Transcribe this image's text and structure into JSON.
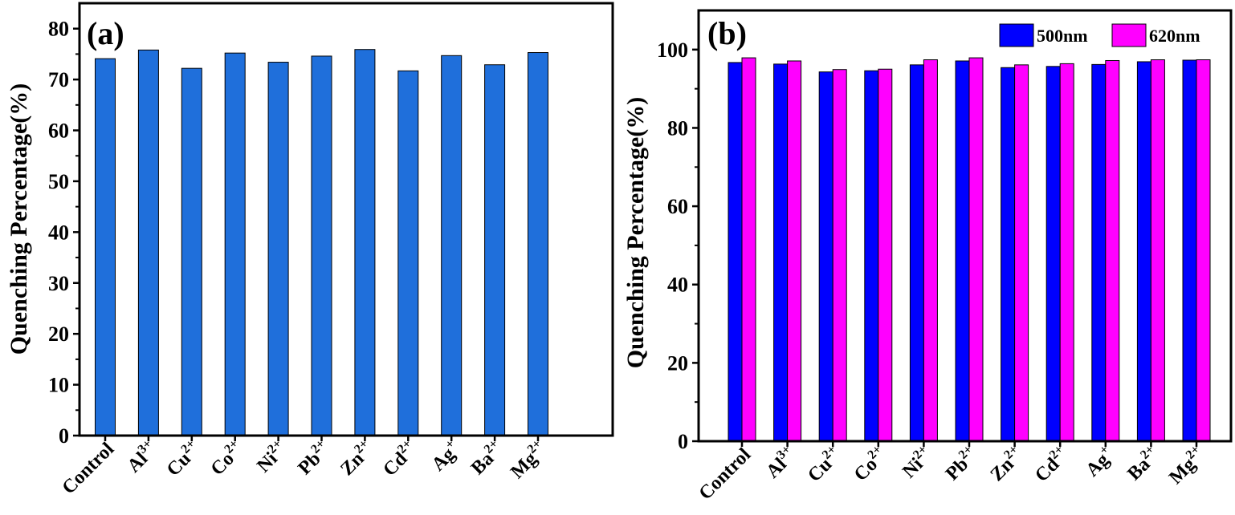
{
  "chart_data": [
    {
      "type": "bar",
      "panel_label": "(a)",
      "ylabel": "Quenching Percentage(%)",
      "ylim": [
        0,
        85
      ],
      "yticks": [
        "0",
        "10",
        "20",
        "30",
        "40",
        "50",
        "60",
        "70",
        "80"
      ],
      "categories": [
        {
          "base": "Control",
          "sup": ""
        },
        {
          "base": "Al",
          "sup": "3+"
        },
        {
          "base": "Cu",
          "sup": "2+"
        },
        {
          "base": "Co",
          "sup": "2+"
        },
        {
          "base": "Ni",
          "sup": "2+"
        },
        {
          "base": "Pb",
          "sup": "2+"
        },
        {
          "base": "Zn",
          "sup": "2+"
        },
        {
          "base": "Cd",
          "sup": "2+"
        },
        {
          "base": "Ag",
          "sup": "+"
        },
        {
          "base": "Ba",
          "sup": "2+"
        },
        {
          "base": "Mg",
          "sup": "2+"
        }
      ],
      "series": [
        {
          "values": [
            74.1,
            75.8,
            72.2,
            75.2,
            73.4,
            74.6,
            75.9,
            71.7,
            74.7,
            72.9,
            75.3
          ],
          "color": "#1f6fdb"
        }
      ]
    },
    {
      "type": "bar",
      "panel_label": "(b)",
      "ylabel": "Quenching Percentage(%)",
      "ylim": [
        0,
        110
      ],
      "yticks": [
        "0",
        "20",
        "40",
        "60",
        "80",
        "100"
      ],
      "legend_position": "top-right",
      "categories": [
        {
          "base": "Control",
          "sup": ""
        },
        {
          "base": "Al",
          "sup": "3+"
        },
        {
          "base": "Cu",
          "sup": "2+"
        },
        {
          "base": "Co",
          "sup": "2+"
        },
        {
          "base": "Ni",
          "sup": "2+"
        },
        {
          "base": "Pb",
          "sup": "2+"
        },
        {
          "base": "Zn",
          "sup": "2+"
        },
        {
          "base": "Cd",
          "sup": "2+"
        },
        {
          "base": "Ag",
          "sup": "+"
        },
        {
          "base": "Ba",
          "sup": "2+"
        },
        {
          "base": "Mg",
          "sup": "2+"
        }
      ],
      "series": [
        {
          "name": "500nm",
          "values": [
            96.7,
            96.3,
            94.3,
            94.6,
            96.1,
            97.1,
            95.4,
            95.7,
            96.2,
            96.9,
            97.3
          ],
          "color": "#0000ff"
        },
        {
          "name": "620nm",
          "values": [
            97.9,
            97.1,
            94.9,
            95.0,
            97.4,
            97.9,
            96.1,
            96.4,
            97.2,
            97.4,
            97.4
          ],
          "color": "#ff00ff"
        }
      ]
    }
  ]
}
